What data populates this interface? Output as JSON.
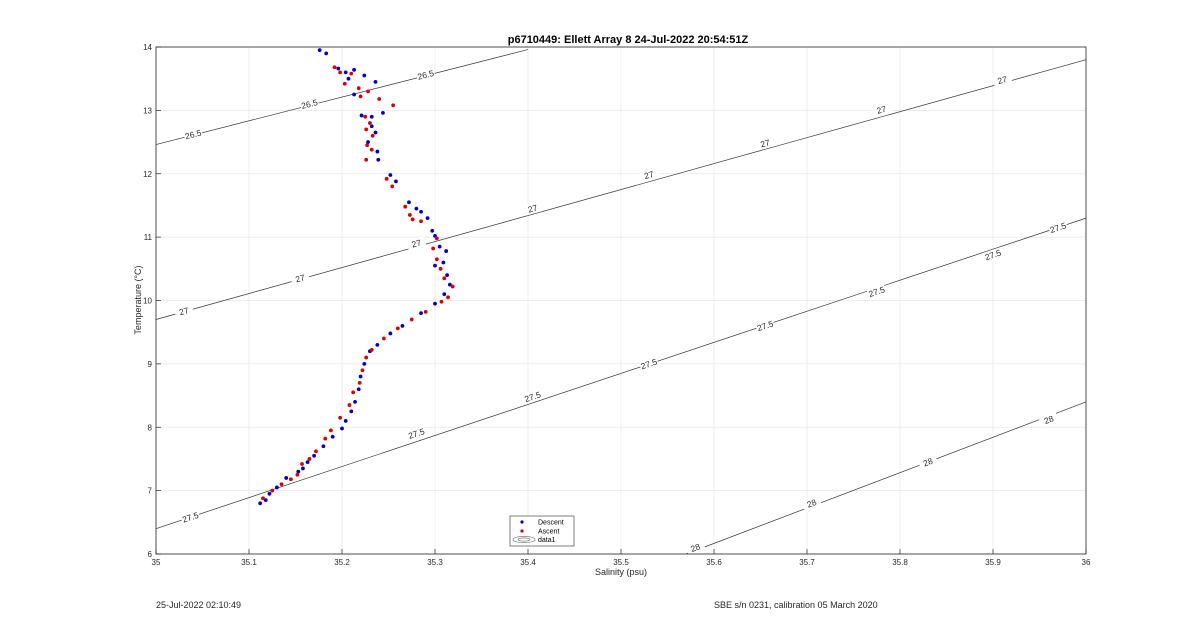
{
  "chart_data": {
    "type": "scatter",
    "title": "p6710449: Ellett Array 8 24-Jul-2022 20:54:51Z",
    "xlabel": "Salinity (psu)",
    "ylabel": "Temperature (°C)",
    "xlim": [
      35,
      36
    ],
    "ylim": [
      6,
      14
    ],
    "x_ticks": [
      35,
      35.1,
      35.2,
      35.3,
      35.4,
      35.5,
      35.6,
      35.7,
      35.8,
      35.9,
      36
    ],
    "x_tick_labels": [
      "35",
      "35.1",
      "35.2",
      "35.3",
      "35.4",
      "35.5",
      "35.6",
      "35.7",
      "35.8",
      "35.9",
      "36"
    ],
    "y_ticks": [
      6,
      7,
      8,
      9,
      10,
      11,
      12,
      13,
      14
    ],
    "y_tick_labels": [
      "6",
      "7",
      "8",
      "9",
      "10",
      "11",
      "12",
      "13",
      "14"
    ],
    "grid": true,
    "legend_position": "bottom-center",
    "legend": [
      "Descent",
      "Ascent",
      "data1"
    ],
    "series": [
      {
        "name": "Descent",
        "color": "#0000cc",
        "marker": "dot",
        "points": [
          [
            35.176,
            13.95
          ],
          [
            35.183,
            13.9
          ],
          [
            35.196,
            13.66
          ],
          [
            35.204,
            13.6
          ],
          [
            35.213,
            13.64
          ],
          [
            35.224,
            13.55
          ],
          [
            35.207,
            13.5
          ],
          [
            35.236,
            13.45
          ],
          [
            35.213,
            13.25
          ],
          [
            35.221,
            12.92
          ],
          [
            35.232,
            12.9
          ],
          [
            35.244,
            12.96
          ],
          [
            35.232,
            12.75
          ],
          [
            35.236,
            12.65
          ],
          [
            35.228,
            12.5
          ],
          [
            35.238,
            12.35
          ],
          [
            35.239,
            12.22
          ],
          [
            35.252,
            11.98
          ],
          [
            35.258,
            11.88
          ],
          [
            35.272,
            11.55
          ],
          [
            35.28,
            11.45
          ],
          [
            35.285,
            11.4
          ],
          [
            35.292,
            11.3
          ],
          [
            35.297,
            11.1
          ],
          [
            35.3,
            11.02
          ],
          [
            35.305,
            10.85
          ],
          [
            35.312,
            10.78
          ],
          [
            35.309,
            10.6
          ],
          [
            35.3,
            10.55
          ],
          [
            35.313,
            10.4
          ],
          [
            35.316,
            10.25
          ],
          [
            35.31,
            10.1
          ],
          [
            35.3,
            9.95
          ],
          [
            35.285,
            9.8
          ],
          [
            35.265,
            9.6
          ],
          [
            35.252,
            9.48
          ],
          [
            35.238,
            9.3
          ],
          [
            35.23,
            9.2
          ],
          [
            35.224,
            9.0
          ],
          [
            35.22,
            8.8
          ],
          [
            35.218,
            8.6
          ],
          [
            35.214,
            8.4
          ],
          [
            35.21,
            8.25
          ],
          [
            35.204,
            8.1
          ],
          [
            35.2,
            7.98
          ],
          [
            35.19,
            7.85
          ],
          [
            35.18,
            7.7
          ],
          [
            35.17,
            7.55
          ],
          [
            35.163,
            7.45
          ],
          [
            35.158,
            7.35
          ],
          [
            35.153,
            7.3
          ],
          [
            35.14,
            7.2
          ],
          [
            35.13,
            7.05
          ],
          [
            35.122,
            6.95
          ],
          [
            35.118,
            6.85
          ],
          [
            35.112,
            6.8
          ]
        ]
      },
      {
        "name": "Ascent",
        "color": "#dd0000",
        "marker": "dot",
        "points": [
          [
            35.192,
            13.68
          ],
          [
            35.198,
            13.6
          ],
          [
            35.21,
            13.58
          ],
          [
            35.203,
            13.42
          ],
          [
            35.218,
            13.35
          ],
          [
            35.228,
            13.3
          ],
          [
            35.22,
            13.22
          ],
          [
            35.24,
            13.18
          ],
          [
            35.255,
            13.08
          ],
          [
            35.225,
            12.9
          ],
          [
            35.23,
            12.8
          ],
          [
            35.226,
            12.7
          ],
          [
            35.233,
            12.6
          ],
          [
            35.227,
            12.45
          ],
          [
            35.232,
            12.38
          ],
          [
            35.226,
            12.22
          ],
          [
            35.248,
            11.92
          ],
          [
            35.254,
            11.8
          ],
          [
            35.268,
            11.48
          ],
          [
            35.273,
            11.35
          ],
          [
            35.276,
            11.28
          ],
          [
            35.285,
            11.25
          ],
          [
            35.302,
            10.98
          ],
          [
            35.298,
            10.82
          ],
          [
            35.302,
            10.65
          ],
          [
            35.306,
            10.5
          ],
          [
            35.31,
            10.35
          ],
          [
            35.319,
            10.22
          ],
          [
            35.314,
            10.05
          ],
          [
            35.307,
            9.98
          ],
          [
            35.29,
            9.82
          ],
          [
            35.275,
            9.7
          ],
          [
            35.26,
            9.56
          ],
          [
            35.245,
            9.4
          ],
          [
            35.232,
            9.22
          ],
          [
            35.226,
            9.1
          ],
          [
            35.222,
            8.9
          ],
          [
            35.219,
            8.7
          ],
          [
            35.212,
            8.55
          ],
          [
            35.208,
            8.35
          ],
          [
            35.198,
            8.15
          ],
          [
            35.188,
            7.95
          ],
          [
            35.182,
            7.82
          ],
          [
            35.172,
            7.62
          ],
          [
            35.165,
            7.5
          ],
          [
            35.157,
            7.42
          ],
          [
            35.152,
            7.25
          ],
          [
            35.145,
            7.18
          ],
          [
            35.135,
            7.1
          ],
          [
            35.125,
            7.0
          ],
          [
            35.115,
            6.88
          ]
        ]
      }
    ],
    "contours": [
      {
        "level": "26.5",
        "points": [
          [
            35,
            12.46
          ],
          [
            35.4,
            13.96
          ]
        ],
        "labels": [
          [
            35.04,
            12.62
          ],
          [
            35.165,
            13.1
          ],
          [
            35.29,
            13.56
          ]
        ]
      },
      {
        "level": "27",
        "points": [
          [
            35,
            9.7
          ],
          [
            36,
            13.8
          ]
        ],
        "labels": [
          [
            35.03,
            9.83
          ],
          [
            35.155,
            10.35
          ],
          [
            35.28,
            10.9
          ],
          [
            35.405,
            11.45
          ],
          [
            35.53,
            11.98
          ],
          [
            35.655,
            12.48
          ],
          [
            35.78,
            13.01
          ],
          [
            35.91,
            13.48
          ]
        ]
      },
      {
        "level": "27.5",
        "points": [
          [
            35,
            6.4
          ],
          [
            36,
            11.3
          ]
        ],
        "labels": [
          [
            35.037,
            6.58
          ],
          [
            35.28,
            7.9
          ],
          [
            35.405,
            8.48
          ],
          [
            35.53,
            9.0
          ],
          [
            35.655,
            9.6
          ],
          [
            35.775,
            10.14
          ],
          [
            35.9,
            10.72
          ],
          [
            35.97,
            11.15
          ]
        ]
      },
      {
        "level": "28",
        "points": [
          [
            35.57,
            6.0
          ],
          [
            36,
            8.4
          ]
        ],
        "labels": [
          [
            35.58,
            6.1
          ],
          [
            35.705,
            6.8
          ],
          [
            35.83,
            7.45
          ],
          [
            35.96,
            8.12
          ]
        ]
      }
    ]
  },
  "footer": {
    "timestamp": "25-Jul-2022 02:10:49",
    "calibration": "SBE s/n 0231, calibration 05 March 2020"
  }
}
